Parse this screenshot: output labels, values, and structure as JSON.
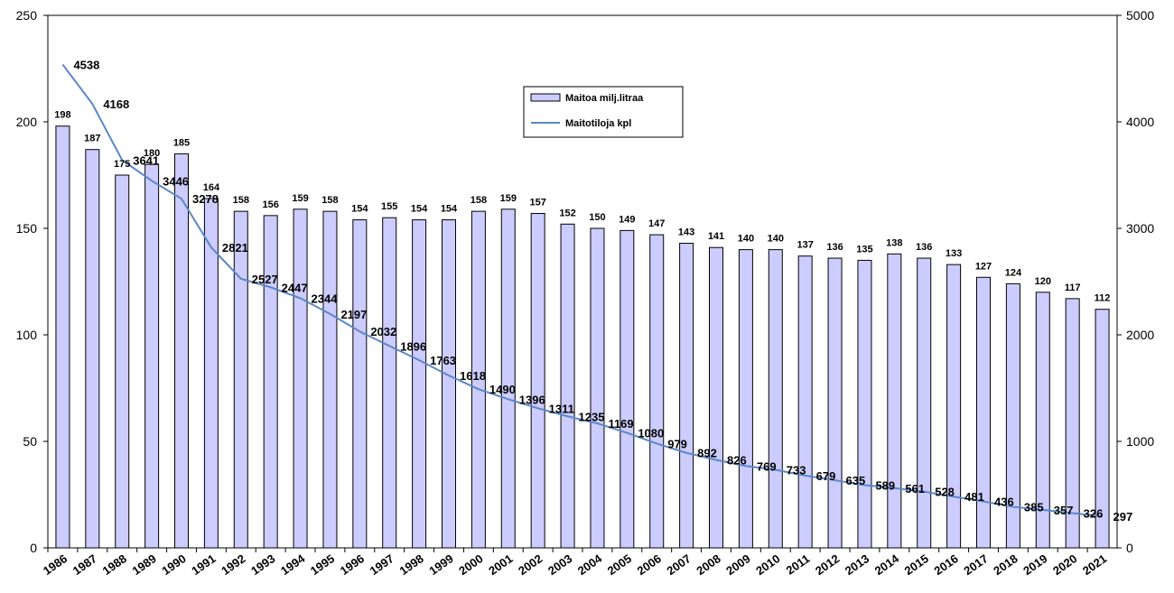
{
  "chart_data": {
    "type": "bar",
    "categories": [
      "1986",
      "1987",
      "1988",
      "1989",
      "1990",
      "1991",
      "1992",
      "1993",
      "1994",
      "1995",
      "1996",
      "1997",
      "1998",
      "1999",
      "2000",
      "2001",
      "2002",
      "2003",
      "2004",
      "2005",
      "2006",
      "2007",
      "2008",
      "2009",
      "2010",
      "2011",
      "2012",
      "2013",
      "2014",
      "2015",
      "2016",
      "2017",
      "2018",
      "2019",
      "2020",
      "2021"
    ],
    "series": [
      {
        "name": "Maitoa milj.litraa",
        "type": "bar",
        "axis": "left",
        "values": [
          198,
          187,
          175,
          180,
          185,
          164,
          158,
          156,
          159,
          158,
          154,
          155,
          154,
          154,
          158,
          159,
          157,
          152,
          150,
          149,
          147,
          143,
          141,
          140,
          140,
          137,
          136,
          135,
          138,
          136,
          133,
          127,
          124,
          120,
          117,
          112
        ]
      },
      {
        "name": "Maitotiloja kpl",
        "type": "line",
        "axis": "right",
        "values": [
          4538,
          4168,
          3641,
          3446,
          3278,
          2821,
          2527,
          2447,
          2344,
          2197,
          2032,
          1896,
          1763,
          1618,
          1490,
          1396,
          1311,
          1235,
          1169,
          1080,
          979,
          892,
          826,
          769,
          733,
          679,
          635,
          589,
          561,
          528,
          481,
          436,
          385,
          357,
          326,
          297
        ]
      }
    ],
    "y_left": {
      "ticks": [
        "0",
        "50",
        "100",
        "150",
        "200",
        "250"
      ],
      "lim": [
        0,
        250
      ]
    },
    "y_right": {
      "ticks": [
        "0",
        "1000",
        "2000",
        "3000",
        "4000",
        "5000"
      ],
      "lim": [
        0,
        5000
      ]
    },
    "legend_placement": "top-center",
    "colors": {
      "bar_fill": "#ccccff",
      "bar_stroke": "#000000",
      "line": "#5b86c9"
    }
  }
}
